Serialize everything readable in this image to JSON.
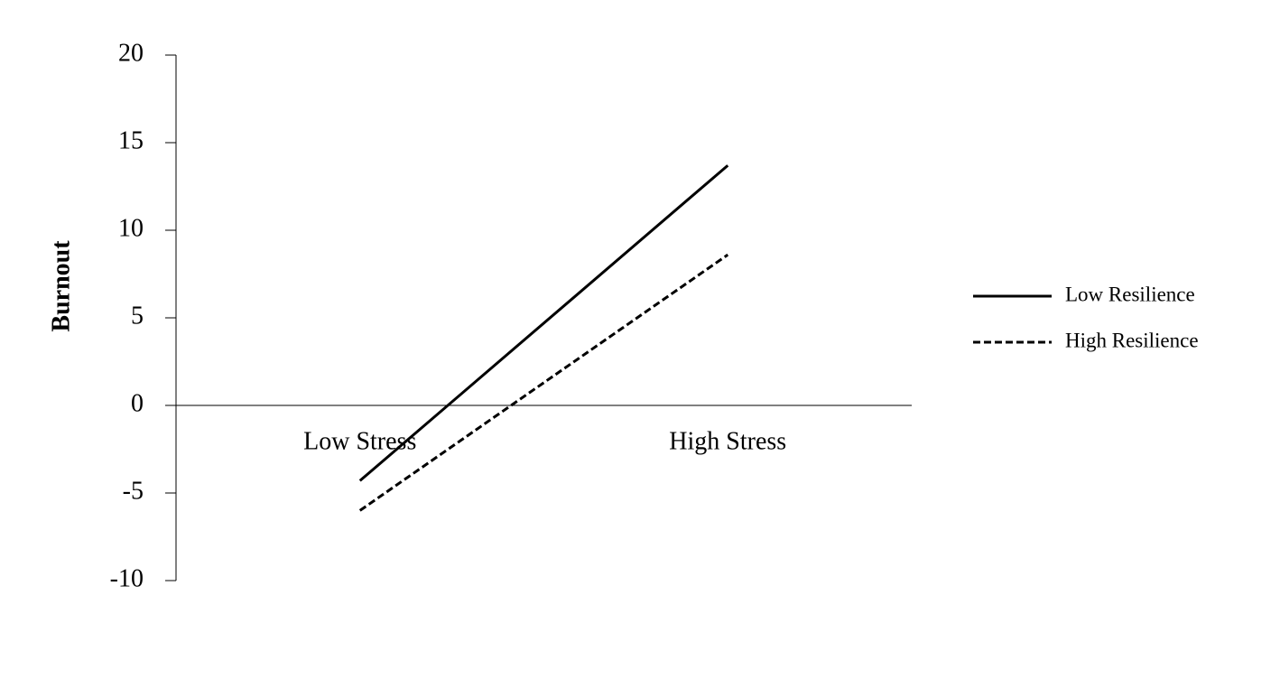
{
  "chart_data": {
    "type": "line",
    "y_label": "Burnout",
    "categories": [
      "Low Stress",
      "High Stress"
    ],
    "series": [
      {
        "name": "Low Resilience",
        "color": "#000000",
        "line_style": "solid",
        "values": [
          -4.3,
          13.7
        ]
      },
      {
        "name": "High Resilience",
        "color": "#000000",
        "line_style": "dashed",
        "values": [
          -6.0,
          8.6
        ]
      }
    ],
    "ylim": [
      -10,
      20
    ],
    "yticks": [
      -10,
      -5,
      0,
      5,
      10,
      15,
      20
    ],
    "grid": false,
    "legend": "right"
  }
}
